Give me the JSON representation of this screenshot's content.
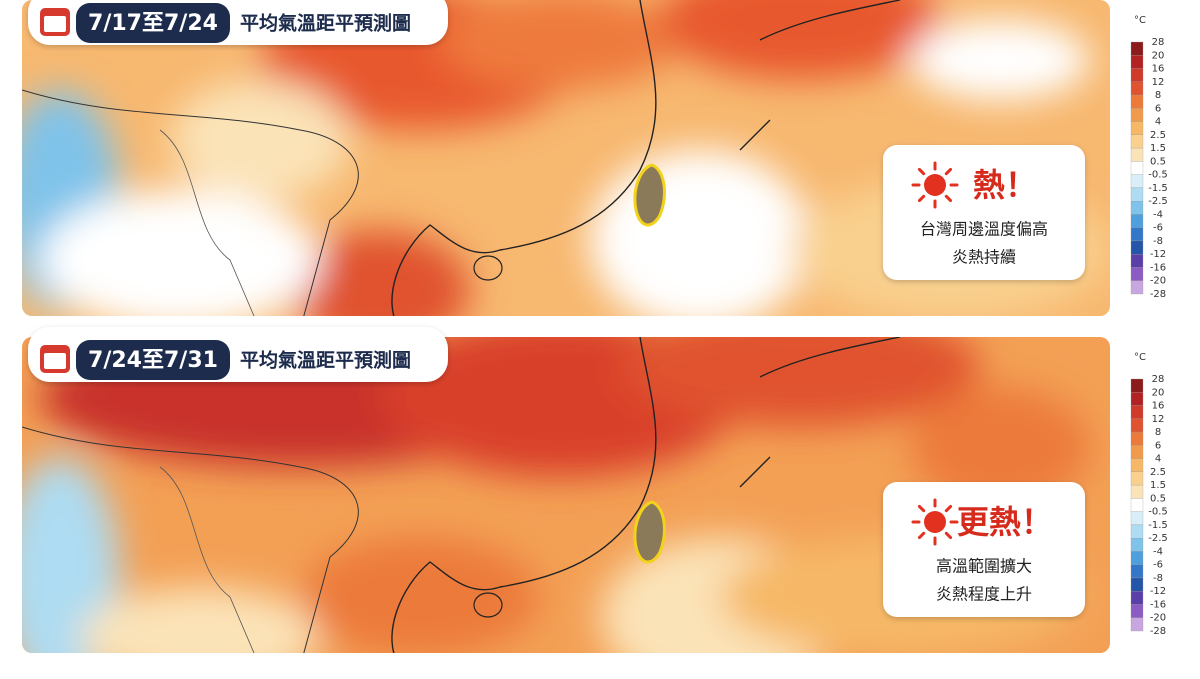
{
  "panels": [
    {
      "date": "7/17至7/24",
      "title": "平均氣溫距平預測圖",
      "callout": {
        "headline": "熱！",
        "lines": [
          "台灣周邊溫度偏高",
          "炎熱持續"
        ]
      }
    },
    {
      "date": "7/24至7/31",
      "title": "平均氣溫距平預測圖",
      "callout": {
        "headline": "更熱！",
        "lines": [
          "高溫範圍擴大",
          "炎熱程度上升"
        ]
      }
    }
  ],
  "legend": {
    "unit": "°C",
    "levels": [
      28,
      20,
      16,
      12,
      8,
      6,
      4,
      2.5,
      1.5,
      0.5,
      -0.5,
      -1.5,
      -2.5,
      -4,
      -6,
      -8,
      -12,
      -16,
      -20,
      -28
    ],
    "colors": [
      "#8c1c1c",
      "#b22222",
      "#cf3a2a",
      "#e0532f",
      "#ec7a3a",
      "#f29a4c",
      "#f6b866",
      "#f9d08e",
      "#fbe3b8",
      "#ffffff",
      "#d9eef8",
      "#aedcf2",
      "#7fc3ea",
      "#4f9fdc",
      "#3377c8",
      "#2455a8",
      "#5a3fa8",
      "#8a5cc4",
      "#c8a6e0"
    ]
  }
}
